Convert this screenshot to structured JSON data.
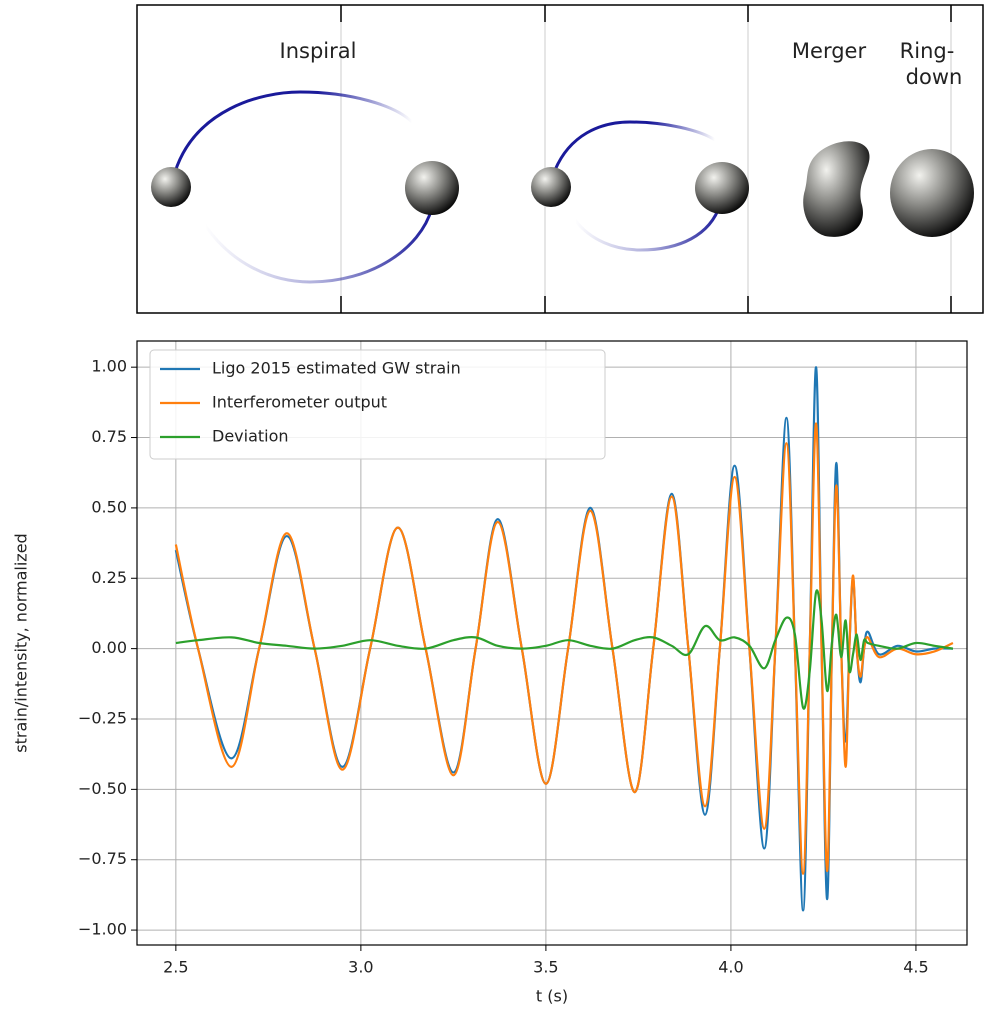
{
  "chart_data": {
    "type": "line",
    "annotations": [
      "Inspiral",
      "Merger",
      "Ring-",
      "down"
    ],
    "xlabel": "t (s)",
    "ylabel": "strain/intensity, normalized",
    "x": [
      2.5,
      2.56,
      2.65,
      2.725,
      2.8,
      2.875,
      2.95,
      3.025,
      3.1,
      3.175,
      3.25,
      3.31,
      3.37,
      3.435,
      3.5,
      3.56,
      3.62,
      3.68,
      3.74,
      3.79,
      3.84,
      3.885,
      3.93,
      3.97,
      4.01,
      4.05,
      4.09,
      4.12,
      4.15,
      4.173,
      4.195,
      4.213,
      4.23,
      4.245,
      4.26,
      4.273,
      4.285,
      4.298,
      4.31,
      4.32,
      4.33,
      4.34,
      4.35,
      4.36,
      4.37,
      4.4,
      4.45,
      4.5,
      4.55,
      4.6
    ],
    "series": [
      {
        "name": "Ligo 2015 estimated GW strain",
        "color": "#1f77b4",
        "values": [
          0.35,
          0,
          -0.39,
          0,
          0.4,
          0,
          -0.42,
          0,
          0.43,
          0,
          -0.44,
          0,
          0.46,
          0,
          -0.48,
          0,
          0.5,
          0,
          -0.51,
          0,
          0.55,
          0,
          -0.59,
          0,
          0.65,
          0,
          -0.71,
          0,
          0.82,
          0,
          -0.93,
          0,
          1.0,
          0,
          -0.89,
          0,
          0.66,
          0,
          -0.33,
          0,
          0.25,
          0,
          -0.12,
          0,
          0.06,
          -0.02,
          0.01,
          -0.01,
          0,
          0
        ]
      },
      {
        "name": "Interferometer output",
        "color": "#ff7f0e",
        "values": [
          0.37,
          0,
          -0.42,
          0,
          0.41,
          0,
          -0.43,
          0,
          0.43,
          0,
          -0.45,
          0,
          0.45,
          0,
          -0.48,
          0,
          0.49,
          0,
          -0.51,
          0,
          0.54,
          0,
          -0.56,
          0,
          0.61,
          0,
          -0.64,
          0,
          0.73,
          0,
          -0.8,
          0,
          0.8,
          0,
          -0.79,
          0,
          0.58,
          0,
          -0.42,
          0,
          0.26,
          0,
          -0.1,
          0,
          0.04,
          -0.03,
          0,
          -0.02,
          -0.01,
          0.02
        ]
      },
      {
        "name": "Deviation",
        "color": "#2ca02c",
        "values": [
          0.02,
          0.03,
          0.04,
          0.02,
          0.01,
          0,
          0.01,
          0.03,
          0.01,
          0,
          0.03,
          0.04,
          0.01,
          0,
          0.01,
          0.03,
          0.01,
          0,
          0.03,
          0.04,
          0.01,
          -0.02,
          0.08,
          0.03,
          0.04,
          0.01,
          -0.07,
          0.03,
          0.11,
          0.05,
          -0.21,
          -0.08,
          0.2,
          0.1,
          -0.15,
          0.02,
          0.12,
          -0.03,
          0.1,
          -0.08,
          -0.02,
          0.05,
          -0.04,
          0.03,
          0.02,
          0.01,
          0,
          0.02,
          0.01,
          0
        ]
      }
    ],
    "xlim": [
      2.395,
      4.638
    ],
    "ylim": [
      -1.053,
      1.093
    ],
    "xticks": [
      2.5,
      {
        "value": 3,
        "label": "3.0"
      },
      3.5,
      {
        "value": 4,
        "label": "4.0"
      },
      4.5
    ],
    "yticks": [
      {
        "value": -1,
        "label": "−1.00"
      },
      {
        "value": -0.75,
        "label": "−0.75"
      },
      {
        "value": -0.5,
        "label": "−0.50"
      },
      {
        "value": -0.25,
        "label": "−0.25"
      },
      {
        "value": 0,
        "label": "0.00"
      },
      {
        "value": 0.25,
        "label": "0.25"
      },
      {
        "value": 0.5,
        "label": "0.50"
      },
      {
        "value": 0.75,
        "label": "0.75"
      },
      {
        "value": 1,
        "label": "1.00"
      }
    ],
    "grid": true,
    "legend": "upper left"
  }
}
